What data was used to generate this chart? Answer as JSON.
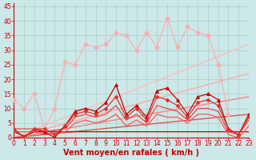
{
  "background_color": "#cce8e8",
  "grid_color": "#aacccc",
  "xlabel": "Vent moyen/en rafales ( km/h )",
  "xlabel_color": "#cc0000",
  "xlabel_fontsize": 7,
  "xtick_fontsize": 5.5,
  "ytick_fontsize": 5.5,
  "yticks": [
    0,
    5,
    10,
    15,
    20,
    25,
    30,
    35,
    40,
    45
  ],
  "xticks": [
    0,
    1,
    2,
    3,
    4,
    5,
    6,
    7,
    8,
    9,
    10,
    11,
    12,
    13,
    14,
    15,
    16,
    17,
    18,
    19,
    20,
    21,
    22,
    23
  ],
  "xlim": [
    0,
    23
  ],
  "ylim": [
    0,
    46
  ],
  "lines": [
    {
      "name": "pink_wiggly",
      "x": [
        0,
        1,
        2,
        3,
        4,
        5,
        6,
        7,
        8,
        9,
        10,
        11,
        12,
        13,
        14,
        15,
        16,
        17,
        18,
        19,
        20,
        21
      ],
      "y": [
        13,
        10,
        15,
        3,
        10,
        26,
        25,
        32,
        31,
        32,
        36,
        35,
        30,
        36,
        31,
        41,
        31,
        38,
        36,
        35,
        25,
        8
      ],
      "color": "#ffaaaa",
      "marker": "D",
      "markersize": 2.5,
      "linewidth": 0.8,
      "zorder": 3
    },
    {
      "name": "diag_upper_light",
      "x": [
        0,
        23
      ],
      "y": [
        0,
        32
      ],
      "color": "#ffbbbb",
      "marker": null,
      "markersize": 0,
      "linewidth": 1.0,
      "zorder": 2
    },
    {
      "name": "diag_upper_medium",
      "x": [
        0,
        23
      ],
      "y": [
        0,
        22
      ],
      "color": "#ffaaaa",
      "marker": null,
      "markersize": 0,
      "linewidth": 1.0,
      "zorder": 2
    },
    {
      "name": "diag_lower_light",
      "x": [
        0,
        23
      ],
      "y": [
        0,
        14
      ],
      "color": "#ee8888",
      "marker": null,
      "markersize": 0,
      "linewidth": 1.0,
      "zorder": 2
    },
    {
      "name": "diag_lower_dark",
      "x": [
        0,
        23
      ],
      "y": [
        0,
        8
      ],
      "color": "#dd5555",
      "marker": null,
      "markersize": 0,
      "linewidth": 1.0,
      "zorder": 2
    },
    {
      "name": "flat_very_low",
      "x": [
        0,
        1,
        2,
        3,
        4,
        5,
        6,
        7,
        8,
        9,
        10,
        11,
        12,
        13,
        14,
        15,
        16,
        17,
        18,
        19,
        20,
        21,
        22,
        23
      ],
      "y": [
        2,
        0.5,
        2,
        2,
        2,
        2,
        2,
        2,
        2,
        2,
        2,
        2,
        2,
        2,
        2,
        2,
        2,
        2,
        2,
        2,
        2,
        2,
        2,
        2
      ],
      "color": "#cc0000",
      "marker": null,
      "markersize": 0,
      "linewidth": 0.9,
      "zorder": 3
    },
    {
      "name": "dark_wiggly1",
      "x": [
        0,
        1,
        2,
        3,
        4,
        5,
        6,
        7,
        8,
        9,
        10,
        11,
        12,
        13,
        14,
        15,
        16,
        17,
        18,
        19,
        20,
        21,
        22,
        23
      ],
      "y": [
        3,
        0,
        3,
        2,
        0,
        4,
        9,
        10,
        9,
        12,
        18,
        8,
        11,
        7,
        16,
        17,
        13,
        8,
        14,
        15,
        13,
        3,
        1,
        8
      ],
      "color": "#cc0000",
      "marker": "^",
      "markersize": 2.5,
      "linewidth": 0.9,
      "zorder": 4
    },
    {
      "name": "dark_wiggly2",
      "x": [
        0,
        1,
        2,
        3,
        4,
        5,
        6,
        7,
        8,
        9,
        10,
        11,
        12,
        13,
        14,
        15,
        16,
        17,
        18,
        19,
        20,
        21,
        22,
        23
      ],
      "y": [
        3,
        0,
        3,
        3,
        1,
        4,
        8,
        9,
        8,
        10,
        14,
        7,
        10,
        6,
        14,
        13,
        11,
        7,
        12,
        13,
        11,
        3,
        1,
        7
      ],
      "color": "#dd3333",
      "marker": "D",
      "markersize": 2,
      "linewidth": 0.9,
      "zorder": 4
    },
    {
      "name": "dark_wiggly3",
      "x": [
        0,
        2,
        3,
        5,
        6,
        7,
        8,
        9,
        10,
        11,
        12,
        13,
        14,
        15,
        16,
        17,
        18,
        19,
        20,
        21,
        22,
        23
      ],
      "y": [
        3,
        3,
        2,
        3,
        7,
        8,
        7,
        8,
        11,
        6,
        8,
        5,
        11,
        10,
        9,
        6,
        10,
        10,
        9,
        2,
        1,
        6
      ],
      "color": "#ee4444",
      "marker": null,
      "markersize": 0,
      "linewidth": 0.9,
      "zorder": 3
    },
    {
      "name": "dark_wiggly4",
      "x": [
        0,
        2,
        3,
        5,
        6,
        7,
        8,
        9,
        10,
        11,
        12,
        13,
        14,
        15,
        16,
        17,
        18,
        19,
        20,
        21,
        22,
        23
      ],
      "y": [
        2,
        2,
        1,
        2,
        5,
        6,
        5,
        6,
        8,
        4,
        6,
        4,
        8,
        7,
        7,
        5,
        8,
        8,
        7,
        1,
        0,
        4
      ],
      "color": "#ff5555",
      "marker": null,
      "markersize": 0,
      "linewidth": 0.9,
      "zorder": 3
    }
  ]
}
